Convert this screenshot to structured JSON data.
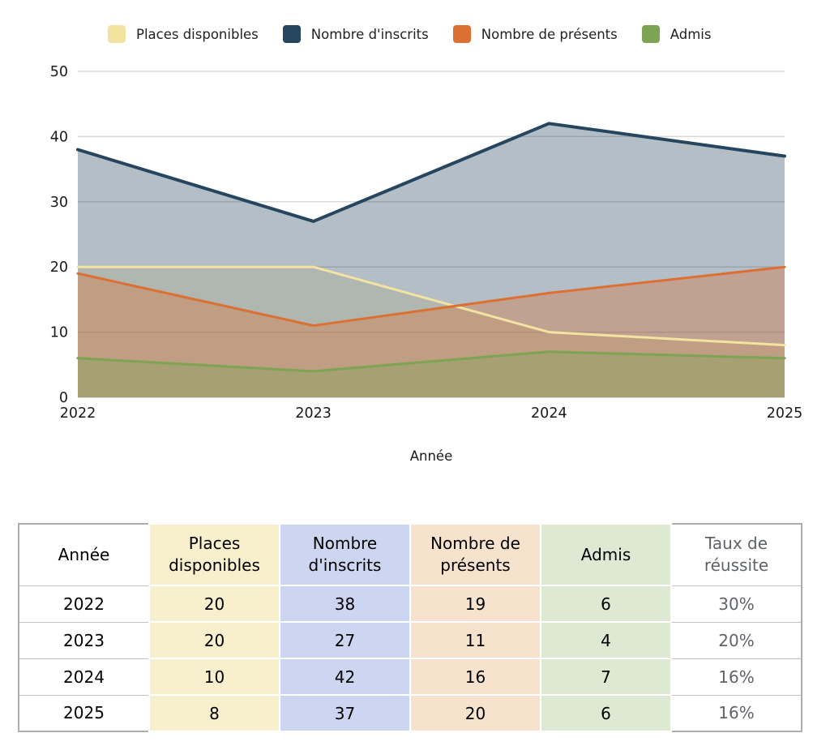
{
  "chart_data": {
    "type": "area",
    "categories": [
      "2022",
      "2023",
      "2024",
      "2025"
    ],
    "series": [
      {
        "name": "Places disponibles",
        "color": "#f3e3a0",
        "values": [
          20,
          20,
          10,
          8
        ],
        "line_width": 3
      },
      {
        "name": "Nombre d'inscrits",
        "color": "#26465f",
        "values": [
          38,
          27,
          42,
          37
        ],
        "line_width": 4
      },
      {
        "name": "Nombre de présents",
        "color": "#dc7032",
        "values": [
          19,
          11,
          16,
          20
        ],
        "line_width": 3
      },
      {
        "name": "Admis",
        "color": "#7ca452",
        "values": [
          6,
          4,
          7,
          6
        ],
        "line_width": 3
      }
    ],
    "title": "",
    "xlabel": "Année",
    "ylabel": "",
    "ylim": [
      0,
      50
    ],
    "yticks": [
      0,
      10,
      20,
      30,
      40,
      50
    ],
    "grid": true,
    "gridline_color": "#d9d9d9",
    "axis_text_color": "#1a1a1a",
    "fill_opacity": 0.35,
    "legend_position": "top"
  },
  "table": {
    "columns": [
      {
        "label": "Année",
        "bg": "#ffffff",
        "text": "#000000",
        "tinted": false
      },
      {
        "label": "Places disponibles",
        "bg": "#f8efcd",
        "text": "#000000",
        "tinted": true
      },
      {
        "label": "Nombre d'inscrits",
        "bg": "#ccd6f0",
        "text": "#000000",
        "tinted": true
      },
      {
        "label": "Nombre de présents",
        "bg": "#f7e3cd",
        "text": "#000000",
        "tinted": true
      },
      {
        "label": "Admis",
        "bg": "#dde9d2",
        "text": "#000000",
        "tinted": true
      },
      {
        "label": "Taux de réussite",
        "bg": "#ffffff",
        "text": "#5f6368",
        "tinted": false
      }
    ],
    "rows": [
      [
        "2022",
        "20",
        "38",
        "19",
        "6",
        "30%"
      ],
      [
        "2023",
        "20",
        "27",
        "11",
        "4",
        "20%"
      ],
      [
        "2024",
        "10",
        "42",
        "16",
        "7",
        "16%"
      ],
      [
        "2025",
        "8",
        "37",
        "20",
        "6",
        "16%"
      ]
    ]
  }
}
